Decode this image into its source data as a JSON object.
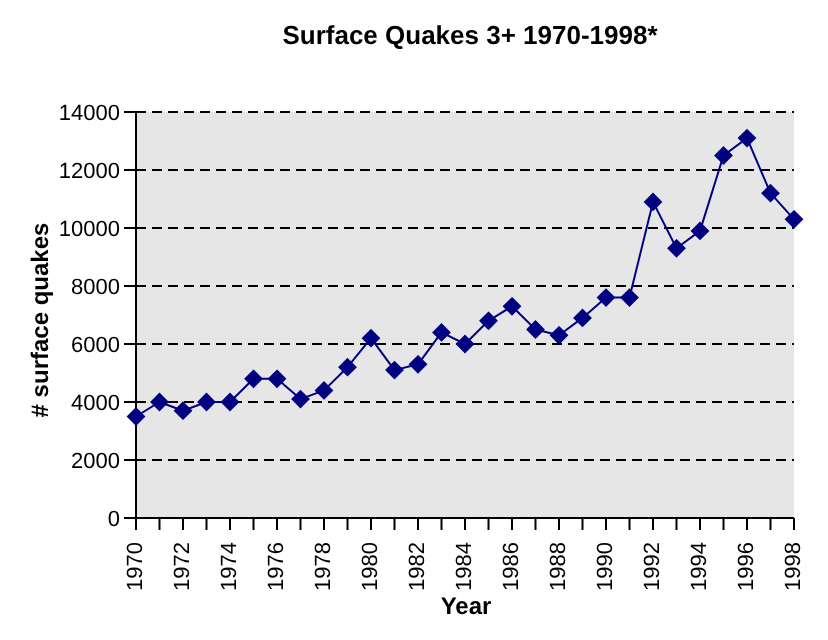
{
  "chart_data": {
    "type": "line",
    "title": "Surface Quakes 3+ 1970-1998*",
    "xlabel": "Year",
    "ylabel": "# surface quakes",
    "categories": [
      "1970",
      null,
      "1972",
      null,
      "1974",
      null,
      "1976",
      null,
      "1978",
      null,
      "1980",
      null,
      "1982",
      null,
      "1984",
      null,
      "1986",
      null,
      "1988",
      null,
      "1990",
      null,
      "1992",
      null,
      "1994",
      null,
      "1996",
      null,
      "1998"
    ],
    "series": [
      {
        "color": "#000080",
        "values": [
          3500,
          4000,
          3700,
          4000,
          4000,
          4800,
          4800,
          4100,
          4400,
          5200,
          6200,
          5100,
          5300,
          6400,
          6000,
          6800,
          7300,
          6500,
          6300,
          6900,
          7600,
          7600,
          10900,
          9300,
          9900,
          12500,
          13100,
          11200,
          10300
        ]
      }
    ],
    "ylim": [
      0,
      14000
    ],
    "yticks": [
      0,
      2000,
      4000,
      6000,
      8000,
      10000,
      12000,
      14000
    ],
    "grid": "y",
    "marker": "diamond",
    "line_style": "solid"
  }
}
